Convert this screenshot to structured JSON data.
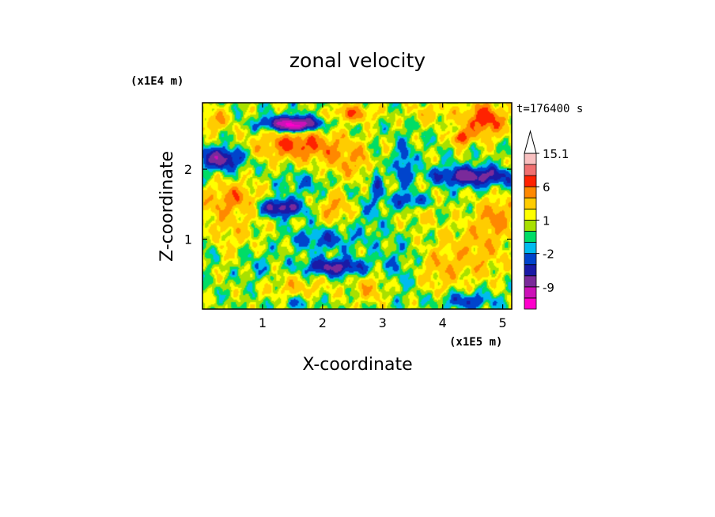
{
  "chart_data": {
    "type": "heatmap",
    "title": "zonal velocity",
    "xlabel": "X-coordinate",
    "ylabel": "Z-coordinate",
    "x_unit": "(x1E5 m)",
    "y_unit": "(x1E4 m)",
    "time_label": "t=176400 s",
    "xlim": [
      0,
      5.15
    ],
    "ylim": [
      0,
      2.95
    ],
    "x_ticks": [
      {
        "value": 1,
        "label": "1"
      },
      {
        "value": 2,
        "label": "2"
      },
      {
        "value": 3,
        "label": "3"
      },
      {
        "value": 4,
        "label": "4"
      },
      {
        "value": 5,
        "label": "5"
      }
    ],
    "y_ticks": [
      {
        "value": 1,
        "label": "1"
      },
      {
        "value": 2,
        "label": "2"
      }
    ],
    "colorbar": {
      "extend": "max",
      "levels": [
        -15,
        -12,
        -9,
        -6,
        -4,
        -2,
        -1,
        0,
        1,
        2,
        4,
        6,
        9,
        12,
        15.1
      ],
      "colors": [
        "#ff00cc",
        "#cc11b8",
        "#7a2a9a",
        "#1a1aa6",
        "#0044cc",
        "#00bbee",
        "#00dd66",
        "#a8e000",
        "#ffff00",
        "#ffcc00",
        "#ff8800",
        "#ff2200",
        "#f07070",
        "#f8c0c0"
      ],
      "cap_color": "#ffffff",
      "labels": [
        {
          "value": 15.1,
          "text": "15.1"
        },
        {
          "value": 6,
          "text": "6"
        },
        {
          "value": 1,
          "text": "1"
        },
        {
          "value": -2,
          "text": "-2"
        },
        {
          "value": -9,
          "text": "-9"
        }
      ]
    },
    "features": [
      {
        "x": 0.3,
        "z": 1.2,
        "sx": 0.7,
        "sz": 0.5,
        "amp": 2.5
      },
      {
        "x": 2.5,
        "z": 2.8,
        "sx": 0.35,
        "sz": 0.12,
        "amp": 5
      },
      {
        "x": 4.7,
        "z": 2.7,
        "sx": 0.35,
        "sz": 0.25,
        "amp": 7
      },
      {
        "x": 4.3,
        "z": 2.45,
        "sx": 0.12,
        "sz": 0.1,
        "amp": 8
      },
      {
        "x": 0.2,
        "z": 2.7,
        "sx": 0.25,
        "sz": 0.15,
        "amp": 4
      },
      {
        "x": 1.6,
        "z": 2.35,
        "sx": 0.7,
        "sz": 0.22,
        "amp": 6
      },
      {
        "x": 2.5,
        "z": 2.1,
        "sx": 0.45,
        "sz": 0.25,
        "amp": 3.5
      },
      {
        "x": 3.8,
        "z": 2.8,
        "sx": 0.4,
        "sz": 0.15,
        "amp": 2.5
      },
      {
        "x": 0.55,
        "z": 1.6,
        "sx": 0.4,
        "sz": 0.2,
        "amp": 3.5
      },
      {
        "x": 2.2,
        "z": 1.45,
        "sx": 0.25,
        "sz": 0.2,
        "amp": 4
      },
      {
        "x": 3.6,
        "z": 1.5,
        "sx": 0.3,
        "sz": 0.3,
        "amp": 2.5
      },
      {
        "x": 4.6,
        "z": 0.85,
        "sx": 0.55,
        "sz": 0.45,
        "amp": 3
      },
      {
        "x": 3.95,
        "z": 0.55,
        "sx": 0.35,
        "sz": 0.35,
        "amp": 2.5
      },
      {
        "x": 1.55,
        "z": 0.3,
        "sx": 0.6,
        "sz": 0.2,
        "amp": 2.5
      },
      {
        "x": 2.8,
        "z": 0.3,
        "sx": 0.3,
        "sz": 0.2,
        "amp": 3
      },
      {
        "x": 4.9,
        "z": 1.35,
        "sx": 0.3,
        "sz": 0.25,
        "amp": 4
      },
      {
        "x": 1.5,
        "z": 2.65,
        "sx": 0.45,
        "sz": 0.1,
        "amp": -12
      },
      {
        "x": 1.55,
        "z": 2.6,
        "sx": 0.12,
        "sz": 0.06,
        "amp": -6
      },
      {
        "x": 0.3,
        "z": 2.15,
        "sx": 0.35,
        "sz": 0.15,
        "amp": -8
      },
      {
        "x": 1.3,
        "z": 1.45,
        "sx": 0.35,
        "sz": 0.12,
        "amp": -8
      },
      {
        "x": 2.2,
        "z": 0.6,
        "sx": 0.5,
        "sz": 0.12,
        "amp": -7
      },
      {
        "x": 2.0,
        "z": 1.0,
        "sx": 0.5,
        "sz": 0.15,
        "amp": -3.5
      },
      {
        "x": 4.5,
        "z": 1.9,
        "sx": 0.65,
        "sz": 0.13,
        "amp": -8
      },
      {
        "x": 3.5,
        "z": 1.55,
        "sx": 0.3,
        "sz": 0.12,
        "amp": -6
      },
      {
        "x": 3.35,
        "z": 2.05,
        "sx": 0.15,
        "sz": 0.35,
        "amp": -4
      },
      {
        "x": 2.9,
        "z": 1.9,
        "sx": 0.08,
        "sz": 0.35,
        "amp": -3.5
      },
      {
        "x": 4.4,
        "z": 0.12,
        "sx": 0.45,
        "sz": 0.12,
        "amp": -4
      },
      {
        "x": 1.6,
        "z": 0.1,
        "sx": 0.35,
        "sz": 0.1,
        "amp": -2.5
      },
      {
        "x": 3.25,
        "z": 0.6,
        "sx": 0.25,
        "sz": 0.4,
        "amp": -1.5
      },
      {
        "x": 0.9,
        "z": 0.6,
        "sx": 0.3,
        "sz": 0.3,
        "amp": -1.5
      },
      {
        "x": 2.8,
        "z": 1.4,
        "sx": 0.25,
        "sz": 0.5,
        "amp": -1.2
      },
      {
        "x": 0.1,
        "z": 0.9,
        "sx": 0.15,
        "sz": 0.25,
        "amp": -2.5
      },
      {
        "x": 1.7,
        "z": 1.8,
        "sx": 0.4,
        "sz": 0.15,
        "amp": -2
      }
    ]
  }
}
